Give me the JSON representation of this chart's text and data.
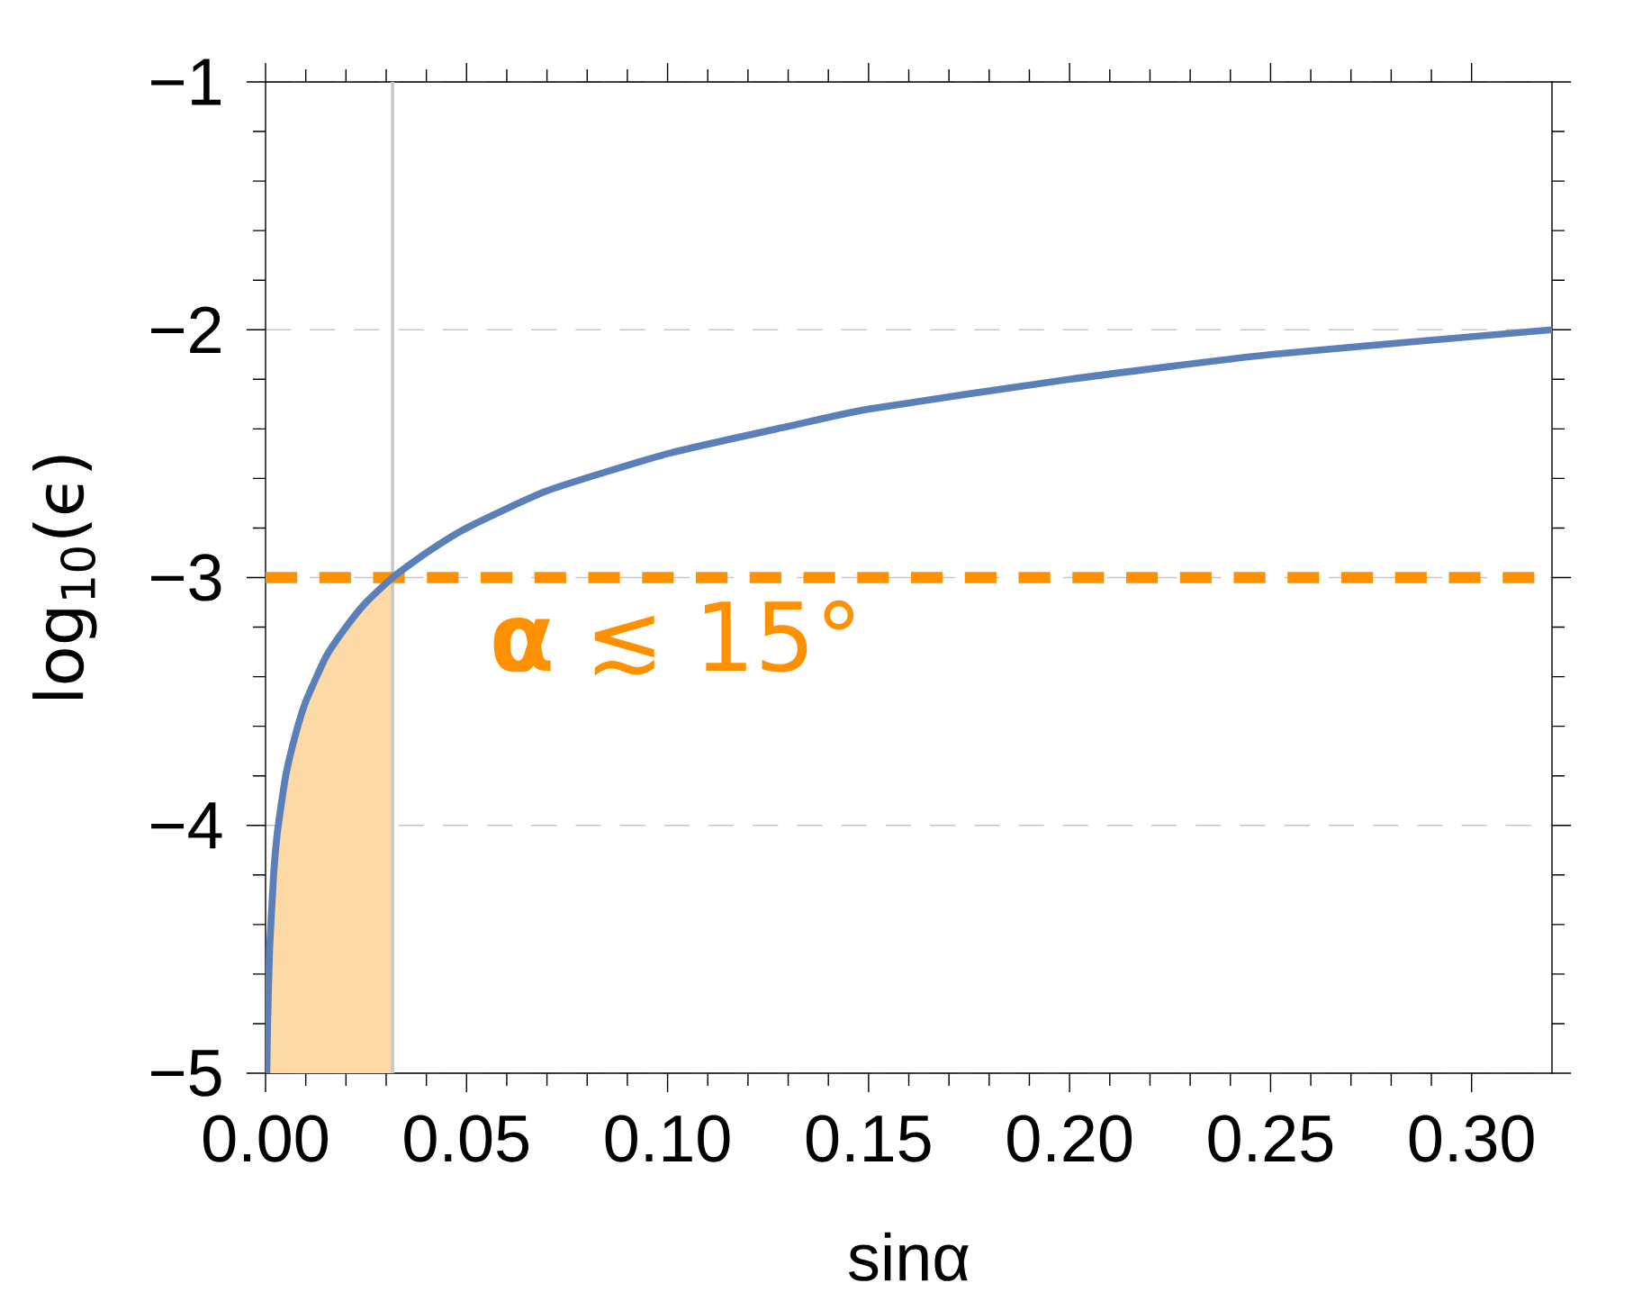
{
  "chart_data": {
    "type": "line",
    "xlabel": "sinα",
    "ylabel": "log$_{10}$(ϵ)",
    "xlim": [
      0,
      0.32
    ],
    "ylim": [
      -5,
      -1
    ],
    "xticks": [
      {
        "value": 0,
        "label": "0.00"
      },
      {
        "value": 0.05,
        "label": "0.05"
      },
      {
        "value": 0.1,
        "label": "0.10"
      },
      {
        "value": 0.15,
        "label": "0.15"
      },
      {
        "value": 0.2,
        "label": "0.20"
      },
      {
        "value": 0.25,
        "label": "0.25"
      },
      {
        "value": 0.3,
        "label": "0.30"
      }
    ],
    "yticks": [
      {
        "value": -5,
        "label": "−5"
      },
      {
        "value": -4,
        "label": "−4"
      },
      {
        "value": -3,
        "label": "−3"
      },
      {
        "value": -2,
        "label": "−2"
      },
      {
        "value": -1,
        "label": "−1"
      }
    ],
    "grid": "y",
    "series": [
      {
        "type": "area",
        "color": "#fdd9a6",
        "x": [
          0.0003,
          0.0005,
          0.001,
          0.002,
          0.003,
          0.005,
          0.0075,
          0.01,
          0.015,
          0.02,
          0.025,
          0.0316,
          0.0316
        ],
        "values": [
          -5.0,
          -4.8,
          -4.5,
          -4.2,
          -4.02,
          -3.8,
          -3.63,
          -3.5,
          -3.32,
          -3.2,
          -3.1,
          -3.0,
          -5.0
        ]
      },
      {
        "type": "line",
        "color": "#5b7fb8",
        "x": [
          0.0003,
          0.0005,
          0.001,
          0.002,
          0.003,
          0.005,
          0.0075,
          0.01,
          0.015,
          0.02,
          0.025,
          0.0316,
          0.04,
          0.05,
          0.07,
          0.1,
          0.13,
          0.15,
          0.2,
          0.25,
          0.32
        ],
        "values": [
          -5.0,
          -4.8,
          -4.5,
          -4.2,
          -4.02,
          -3.8,
          -3.63,
          -3.5,
          -3.32,
          -3.2,
          -3.1,
          -3.0,
          -2.9,
          -2.8,
          -2.65,
          -2.5,
          -2.39,
          -2.32,
          -2.2,
          -2.1,
          -2.0
        ]
      }
    ],
    "ref_lines": [
      {
        "axis": "x",
        "value": 0.0316,
        "color": "#c8c8c8",
        "line_style": "solid"
      },
      {
        "axis": "y",
        "value": -3,
        "color": "#ff9100",
        "line_style": "dashed",
        "label": "**α** ≲ 15°"
      }
    ]
  }
}
